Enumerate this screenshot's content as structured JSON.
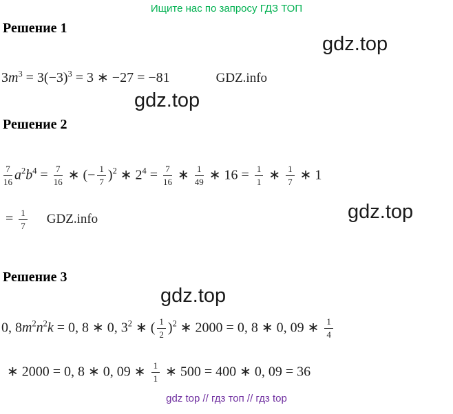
{
  "banners": {
    "top": "Ищите нас по запросу ГДЗ ТОП",
    "bottom": "gdz top // гдз топ // гдз top"
  },
  "watermarks": [
    "gdz.top",
    "gdz.top",
    "gdz.top",
    "gdz.top"
  ],
  "labels": {
    "gdz_info": "GDZ.info"
  },
  "colors": {
    "banner-green": "#00b050",
    "banner-purple": "#7030a0",
    "watermark-color": "#1a1a1a"
  },
  "solutions": [
    {
      "title": "Решение 1",
      "lines": [
        [
          {
            "text": "3"
          },
          {
            "var": "m"
          },
          {
            "sup": "3"
          },
          {
            "text": " = 3(−3)"
          },
          {
            "sup": "3"
          },
          {
            "text": " = 3 ∗ −27 = −81"
          }
        ]
      ]
    },
    {
      "title": "Решение 2",
      "lines": [
        [
          {
            "frac": [
              "7",
              "16"
            ]
          },
          {
            "var": "a"
          },
          {
            "sup": "2"
          },
          {
            "var": "b"
          },
          {
            "sup": "4"
          },
          {
            "text": " = "
          },
          {
            "frac": [
              "7",
              "16"
            ]
          },
          {
            "text": " ∗ (−"
          },
          {
            "frac": [
              "1",
              "7"
            ]
          },
          {
            "text": ")"
          },
          {
            "sup": "2"
          },
          {
            "text": " ∗ 2"
          },
          {
            "sup": "4"
          },
          {
            "text": " = "
          },
          {
            "frac": [
              "7",
              "16"
            ]
          },
          {
            "text": " ∗ "
          },
          {
            "frac": [
              "1",
              "49"
            ]
          },
          {
            "text": " ∗ 16 = "
          },
          {
            "frac": [
              "1",
              "1"
            ]
          },
          {
            "text": " ∗ "
          },
          {
            "frac": [
              "1",
              "7"
            ]
          },
          {
            "text": " ∗ 1"
          }
        ],
        [
          {
            "text": "= "
          },
          {
            "frac": [
              "1",
              "7"
            ]
          }
        ]
      ]
    },
    {
      "title": "Решение 3",
      "lines": [
        [
          {
            "text": "0, 8"
          },
          {
            "var": "m"
          },
          {
            "sup": "2"
          },
          {
            "var": "n"
          },
          {
            "sup": "2"
          },
          {
            "var": "k"
          },
          {
            "text": " = 0, 8 ∗ 0, 3"
          },
          {
            "sup": "2"
          },
          {
            "text": " ∗ ("
          },
          {
            "frac": [
              "1",
              "2"
            ]
          },
          {
            "text": ")"
          },
          {
            "sup": "2"
          },
          {
            "text": " ∗ 2000 = 0, 8 ∗ 0, 09 ∗ "
          },
          {
            "frac": [
              "1",
              "4"
            ]
          }
        ],
        [
          {
            "text": "∗ 2000 = 0, 8 ∗ 0, 09 ∗ "
          },
          {
            "frac": [
              "1",
              "1"
            ]
          },
          {
            "text": " ∗ 500 = 400 ∗ 0, 09 = 36"
          }
        ]
      ]
    }
  ]
}
